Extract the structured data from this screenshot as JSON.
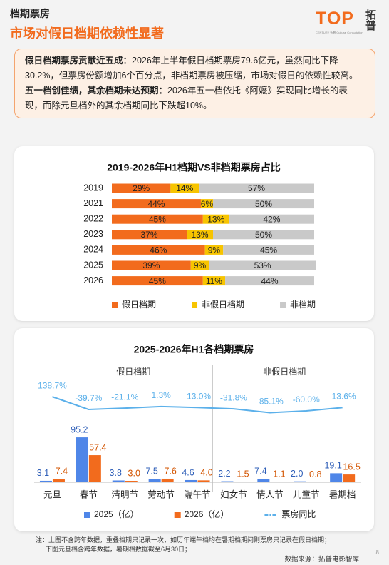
{
  "header": {
    "section": "档期票房",
    "title": "市场对假日档期依赖性显著",
    "logo": "TOP",
    "logo_sub": "CENTURY 拓普 Cultural Consultation",
    "logo_cn": "拓普"
  },
  "summary": [
    {
      "lead": "假日档期票房贡献近五成：",
      "text": "2026年上半年假日档期票房79.6亿元，虽然同比下降30.2%，但票房份额增加6个百分点，非档期票房被压缩，市场对假日的依赖性较高。"
    },
    {
      "lead": "五一档创佳绩，其余档期未达预期：",
      "text": "2026年五一档依托《阿嬷》实现同比增长的表现，而除元旦档外的其余档期同比下跌超10%。"
    }
  ],
  "chart_data": [
    {
      "type": "stackedbar",
      "title": "2019-2026年H1档期VS非档期票房占比",
      "categories": [
        "2019",
        "2021",
        "2022",
        "2023",
        "2024",
        "2025",
        "2026"
      ],
      "xlim": [
        0,
        100
      ],
      "series": [
        {
          "name": "假日档期",
          "color": "#f26b1d",
          "values": [
            29,
            44,
            45,
            37,
            46,
            39,
            45
          ],
          "value_labels": [
            "29%",
            "44%",
            "45%",
            "37%",
            "46%",
            "39%",
            "45%"
          ]
        },
        {
          "name": "非假日档期",
          "color": "#f7c400",
          "values": [
            14,
            6,
            13,
            13,
            9,
            9,
            11
          ],
          "value_labels": [
            "14%",
            "6%",
            "13%",
            "13%",
            "9%",
            "9%",
            "11%"
          ]
        },
        {
          "name": "非档期",
          "color": "#c9c9c9",
          "values": [
            57,
            50,
            42,
            50,
            45,
            53,
            44
          ],
          "value_labels": [
            "57%",
            "50%",
            "42%",
            "50%",
            "45%",
            "53%",
            "44%"
          ]
        }
      ]
    },
    {
      "type": "combo",
      "title": "2025-2026年H1各档期票房",
      "groups": [
        "假日档期",
        "非假日档期"
      ],
      "categories": [
        "元旦",
        "春节",
        "清明节",
        "劳动节",
        "端午节",
        "妇女节",
        "情人节",
        "儿童节",
        "暑期档"
      ],
      "ylim": [
        0,
        115
      ],
      "y2lim": [
        -200,
        300
      ],
      "series": [
        {
          "name": "2025（亿）",
          "color": "#4f86e8",
          "values": [
            3.1,
            95.2,
            3.8,
            7.5,
            4.6,
            2.2,
            7.4,
            2.0,
            19.1
          ],
          "value_labels": [
            "3.1",
            "95.2",
            "3.8",
            "7.5",
            "4.6",
            "2.2",
            "7.4",
            "2.0",
            "19.1"
          ]
        },
        {
          "name": "2026（亿）",
          "color": "#f26b1d",
          "values": [
            7.4,
            57.4,
            3.0,
            7.6,
            4.0,
            1.5,
            1.1,
            0.8,
            16.5
          ],
          "value_labels": [
            "7.4",
            "57.4",
            "3.0",
            "7.6",
            "4.0",
            "1.5",
            "1.1",
            "0.8",
            "16.5"
          ]
        },
        {
          "name": "票房同比",
          "color": "#5bb0ea",
          "axis": "y2",
          "values": [
            138.7,
            -39.7,
            -21.1,
            1.3,
            -13.0,
            -31.8,
            -85.1,
            -60.0,
            -13.6
          ],
          "value_labels": [
            "138.7%",
            "-39.7%",
            "-21.1%",
            "1.3%",
            "-13.0%",
            "-31.8%",
            "-85.1%",
            "-60.0%",
            "-13.6%"
          ]
        }
      ]
    }
  ],
  "notes": [
    "注：上图不含跨年数据，重叠档期只记录一次，如历年端午档均在暑期档期间则票房只记录在假日档期；",
    "下图元旦档含跨年数据，暑期档数据截至6月30日；"
  ],
  "source": "数据来源：拓普电影智库",
  "page": 8
}
